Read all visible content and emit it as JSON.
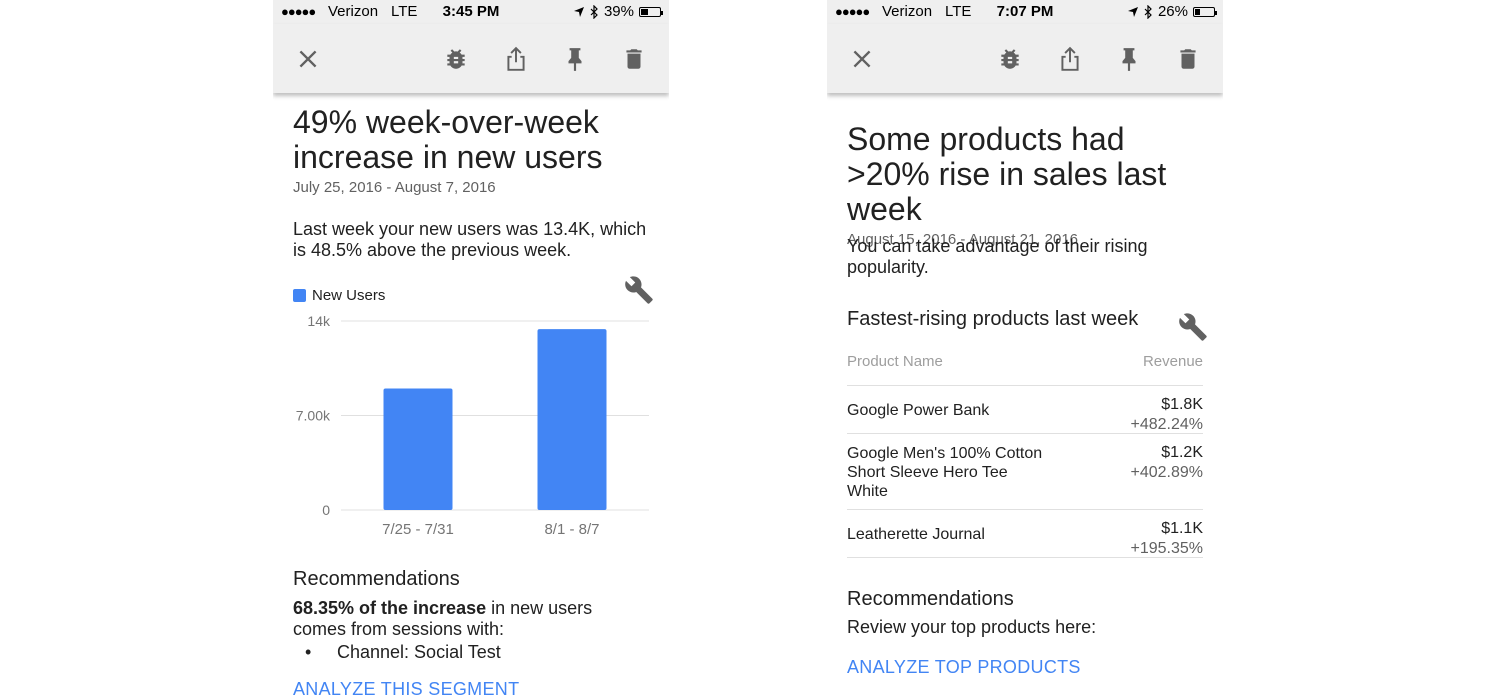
{
  "left": {
    "status": {
      "signal": "●●●●●",
      "carrier": "Verizon",
      "network": "LTE",
      "time": "3:45 PM",
      "battery": "39%",
      "battery_fraction": 0.39
    },
    "toolbar": {
      "icons": [
        "close-icon",
        "bug-icon",
        "share-icon",
        "pin-icon",
        "delete-icon"
      ]
    },
    "headline": "49% week-over-week increase in new users",
    "daterange": "July 25, 2016 - August 7, 2016",
    "summary": "Last week your new users was 13.4K, which is 48.5% above the previous week.",
    "recommendations": {
      "title": "Recommendations",
      "bold_lead": "68.35% of the increase",
      "text_rest": " in new users comes from sessions with:",
      "bullet": "Channel: Social Test",
      "link": "ANALYZE THIS SEGMENT"
    }
  },
  "chart_data": {
    "type": "bar",
    "categories": [
      "7/25 - 7/31",
      "8/1 - 8/7"
    ],
    "series": [
      {
        "name": "New Users",
        "values": [
          9000,
          13400
        ]
      }
    ],
    "yticks": [
      "0",
      "7.00k",
      "14k"
    ],
    "ytick_values": [
      0,
      7000,
      14000
    ],
    "ylim": [
      0,
      14000
    ],
    "legend": "top-left",
    "grid": true,
    "color": "#4285f4"
  },
  "right": {
    "status": {
      "signal": "●●●●●",
      "carrier": "Verizon",
      "network": "LTE",
      "time": "7:07 PM",
      "battery": "26%",
      "battery_fraction": 0.26
    },
    "toolbar": {
      "icons": [
        "close-icon",
        "bug-icon",
        "share-icon",
        "pin-icon",
        "delete-icon"
      ]
    },
    "headline": "Some products had >20% rise in sales last week",
    "daterange": "August 15, 2016 - August 21, 2016",
    "summary": "You can take advantage of their rising popularity.",
    "table": {
      "title": "Fastest-rising products last week",
      "col_name": "Product Name",
      "col_revenue": "Revenue",
      "rows": [
        {
          "name": "Google Power Bank",
          "revenue": "$1.8K",
          "change": "+482.24%"
        },
        {
          "name": "Google Men's 100% Cotton Short Sleeve Hero Tee White",
          "revenue": "$1.2K",
          "change": "+402.89%"
        },
        {
          "name": "Leatherette Journal",
          "revenue": "$1.1K",
          "change": "+195.35%"
        }
      ]
    },
    "recommendations": {
      "title": "Recommendations",
      "text": "Review your top products here:",
      "link": "ANALYZE TOP PRODUCTS"
    }
  },
  "colors": {
    "accent": "#4285f4",
    "toolbar": "#efefef",
    "divider": "#e0e0e0",
    "icon": "#616161"
  }
}
